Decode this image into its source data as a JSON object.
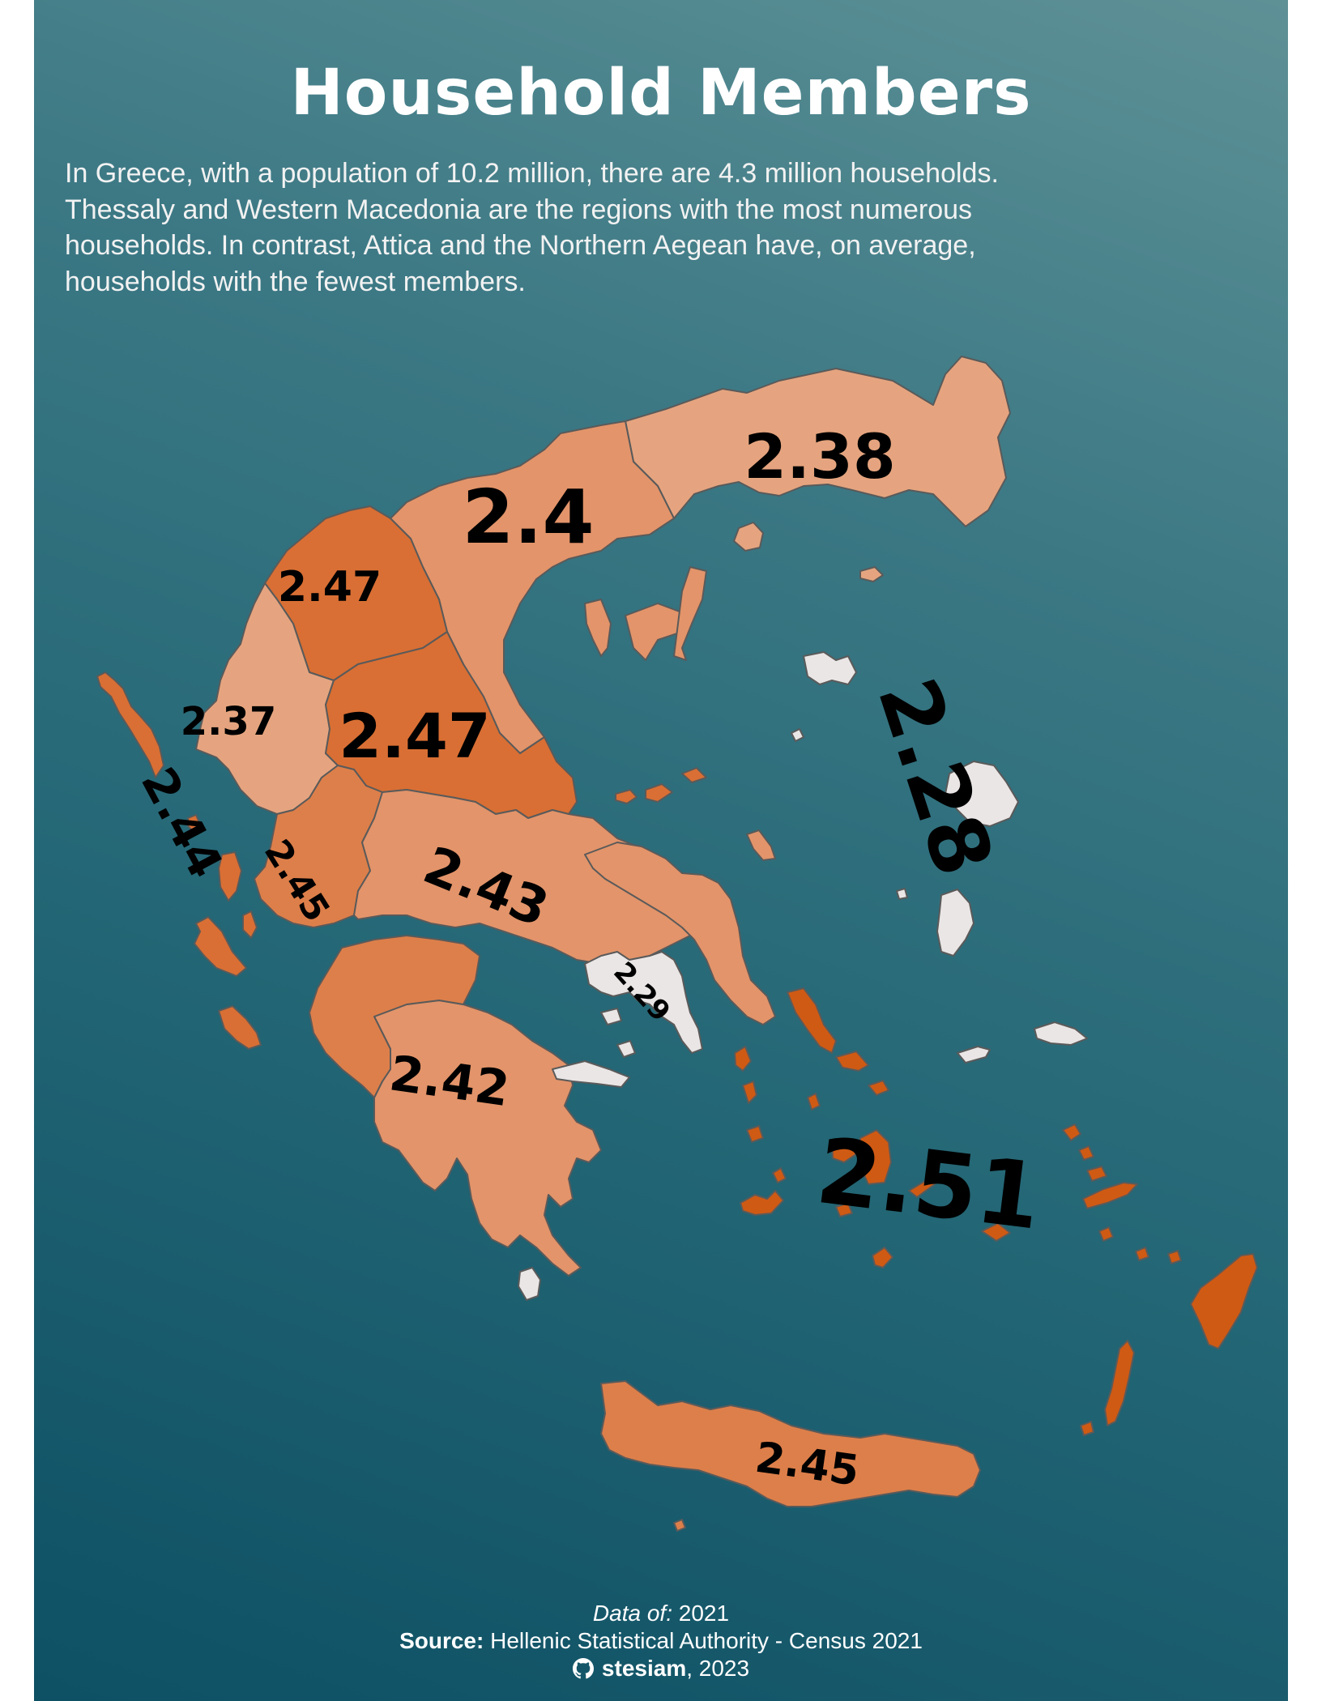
{
  "title": "Household Members",
  "subtitle_lines": [
    "In Greece, with a population of 10.2 million, there are 4.3 million households.",
    "Thessaly and Western Macedonia are the regions with the most numerous",
    "households. In contrast, Attica and the Northern Aegean have, on average,",
    "households with the fewest members."
  ],
  "map": {
    "background_gradient": [
      "#5e9196",
      "#0e5064"
    ],
    "colors": {
      "highest": "#cf5a14",
      "high": "#d96f34",
      "mid": "#dd7f4a",
      "low": "#e3946a",
      "lower": "#e5a47f",
      "lowest": "#ebe6e6"
    },
    "regions": [
      {
        "label": "2.38",
        "value": 2.38
      },
      {
        "label": "2.4",
        "value": 2.4
      },
      {
        "label": "2.47",
        "value": 2.47
      },
      {
        "label": "2.37",
        "value": 2.37
      },
      {
        "label": "2.47",
        "value": 2.47
      },
      {
        "label": "2.44",
        "value": 2.44
      },
      {
        "label": "2.45",
        "value": 2.45
      },
      {
        "label": "2.43",
        "value": 2.43
      },
      {
        "label": "2.28",
        "value": 2.28
      },
      {
        "label": "2.29",
        "value": 2.29
      },
      {
        "label": "2.42",
        "value": 2.42
      },
      {
        "label": "2.51",
        "value": 2.51
      },
      {
        "label": "2.45",
        "value": 2.45
      }
    ]
  },
  "footer": {
    "data_of_label": "Data of:",
    "data_of_value": "2021",
    "source_label": "Source:",
    "source_value": "Hellenic Statistical Authority - Census 2021",
    "github_icon": "github-icon",
    "author": "stesiam",
    "year": ", 2023"
  }
}
